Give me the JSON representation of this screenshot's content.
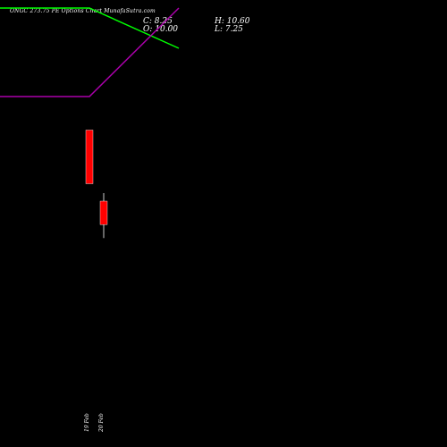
{
  "header": {
    "title": "ONGC 273.75 PE Options  Chart MunafaSutra.com",
    "close": "C: 8.25",
    "high": "H: 10.60",
    "open": "O: 10.00",
    "low": "L: 7.25"
  },
  "chart_data": {
    "type": "candlestick",
    "price_range": [
      0,
      20
    ],
    "candles": [
      {
        "label": "19 Feb",
        "open": 15.3,
        "high": 15.3,
        "low": 11.3,
        "close": 11.3,
        "color": "#ff0000"
      },
      {
        "label": "20 Feb",
        "open": 10.0,
        "high": 10.6,
        "low": 7.25,
        "close": 8.25,
        "color": "#ff0000"
      }
    ],
    "lines": [
      {
        "color": "#00ff00",
        "values": [
          24.4,
          24.4,
          21.4
        ]
      },
      {
        "color": "#aa00aa",
        "values": [
          17.8,
          17.8,
          24.4
        ]
      }
    ]
  }
}
